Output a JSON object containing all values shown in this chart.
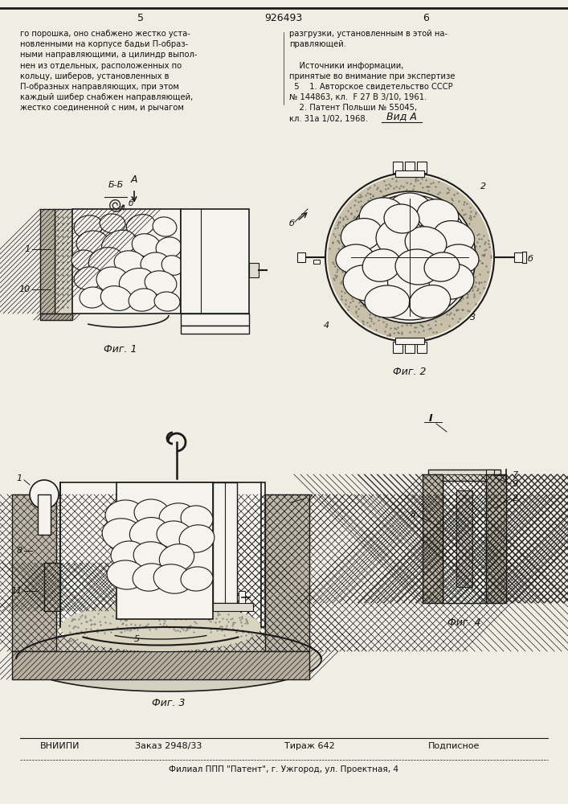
{
  "page_color": "#f0ede5",
  "title_number": "926493",
  "page_left": "5",
  "page_right": "6",
  "text_left_lines": [
    "го порошка, оно снабжено жестко уста-",
    "новленными на корпусе бадьи П-образ-",
    "ными направляющими, а цилиндр выпол-",
    "нен из отдельных, расположенных по",
    "кольцу, шиберов, установленных в",
    "П-образных направляющих, при этом",
    "каждый шибер снабжен направляющей,",
    "жестко соединенной с ним, и рычагом"
  ],
  "text_right_lines": [
    "разгрузки, установленным в этой на-",
    "правляющей.",
    "",
    "    Источники информации,",
    "принятые во внимание при экспертизе",
    "  5    1. Авторское свидетельство СССР",
    "№ 144863, кл.  F 27 В 3/10, 1961.",
    "    2. Патент Польши № 55045,",
    "кл. 31а 1/02, 1968."
  ],
  "fig1_label": "Фиг. 1",
  "fig2_label": "Фиг. 2",
  "fig3_label": "Фиг. 3",
  "fig4_label": "Фиг. 4",
  "vid_a_label": "Вид А",
  "footer_org": "ВНИИПИ",
  "footer_order": "Заказ 2948/33",
  "footer_print": "Тираж 642",
  "footer_sub": "Подписное",
  "footer_branch": "Филиал ППП \"Патент\", г. Ужгород, ул. Проектная, 4",
  "lc": "#1a1a1a",
  "tc": "#111111",
  "hatch_fill": "#b0a898",
  "dotted_fill": "#c8c0a8",
  "white_fill": "#f5f3ee",
  "light_gray": "#e0dcd0"
}
